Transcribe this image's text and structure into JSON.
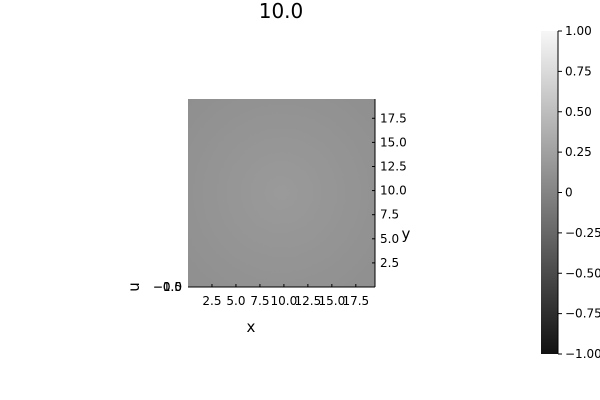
{
  "chart_data": {
    "type": "heatmap",
    "title": "10.0",
    "xlabel": "x",
    "ylabel": "y",
    "zlabel": "u",
    "x_ticks": [
      "2.5",
      "5.0",
      "7.5",
      "10.0",
      "12.5",
      "15.0",
      "17.5"
    ],
    "y_ticks": [
      "2.5",
      "5.0",
      "7.5",
      "10.0",
      "12.5",
      "15.0",
      "17.5"
    ],
    "z_ticks": [
      "−1.0",
      "−0.5",
      "0.0"
    ],
    "xlim": [
      0,
      19.5
    ],
    "ylim": [
      0,
      19.5
    ],
    "field_value": 0.03,
    "colorbar": {
      "range": [
        -1.0,
        1.0
      ],
      "ticks": [
        "1.00",
        "0.75",
        "0.50",
        "0.25",
        "0",
        "−0.25",
        "−0.50",
        "−0.75",
        "−1.00"
      ],
      "colormap": "grayscale",
      "low_color": "#111111",
      "high_color": "#f7f7f7"
    },
    "grid": false
  }
}
